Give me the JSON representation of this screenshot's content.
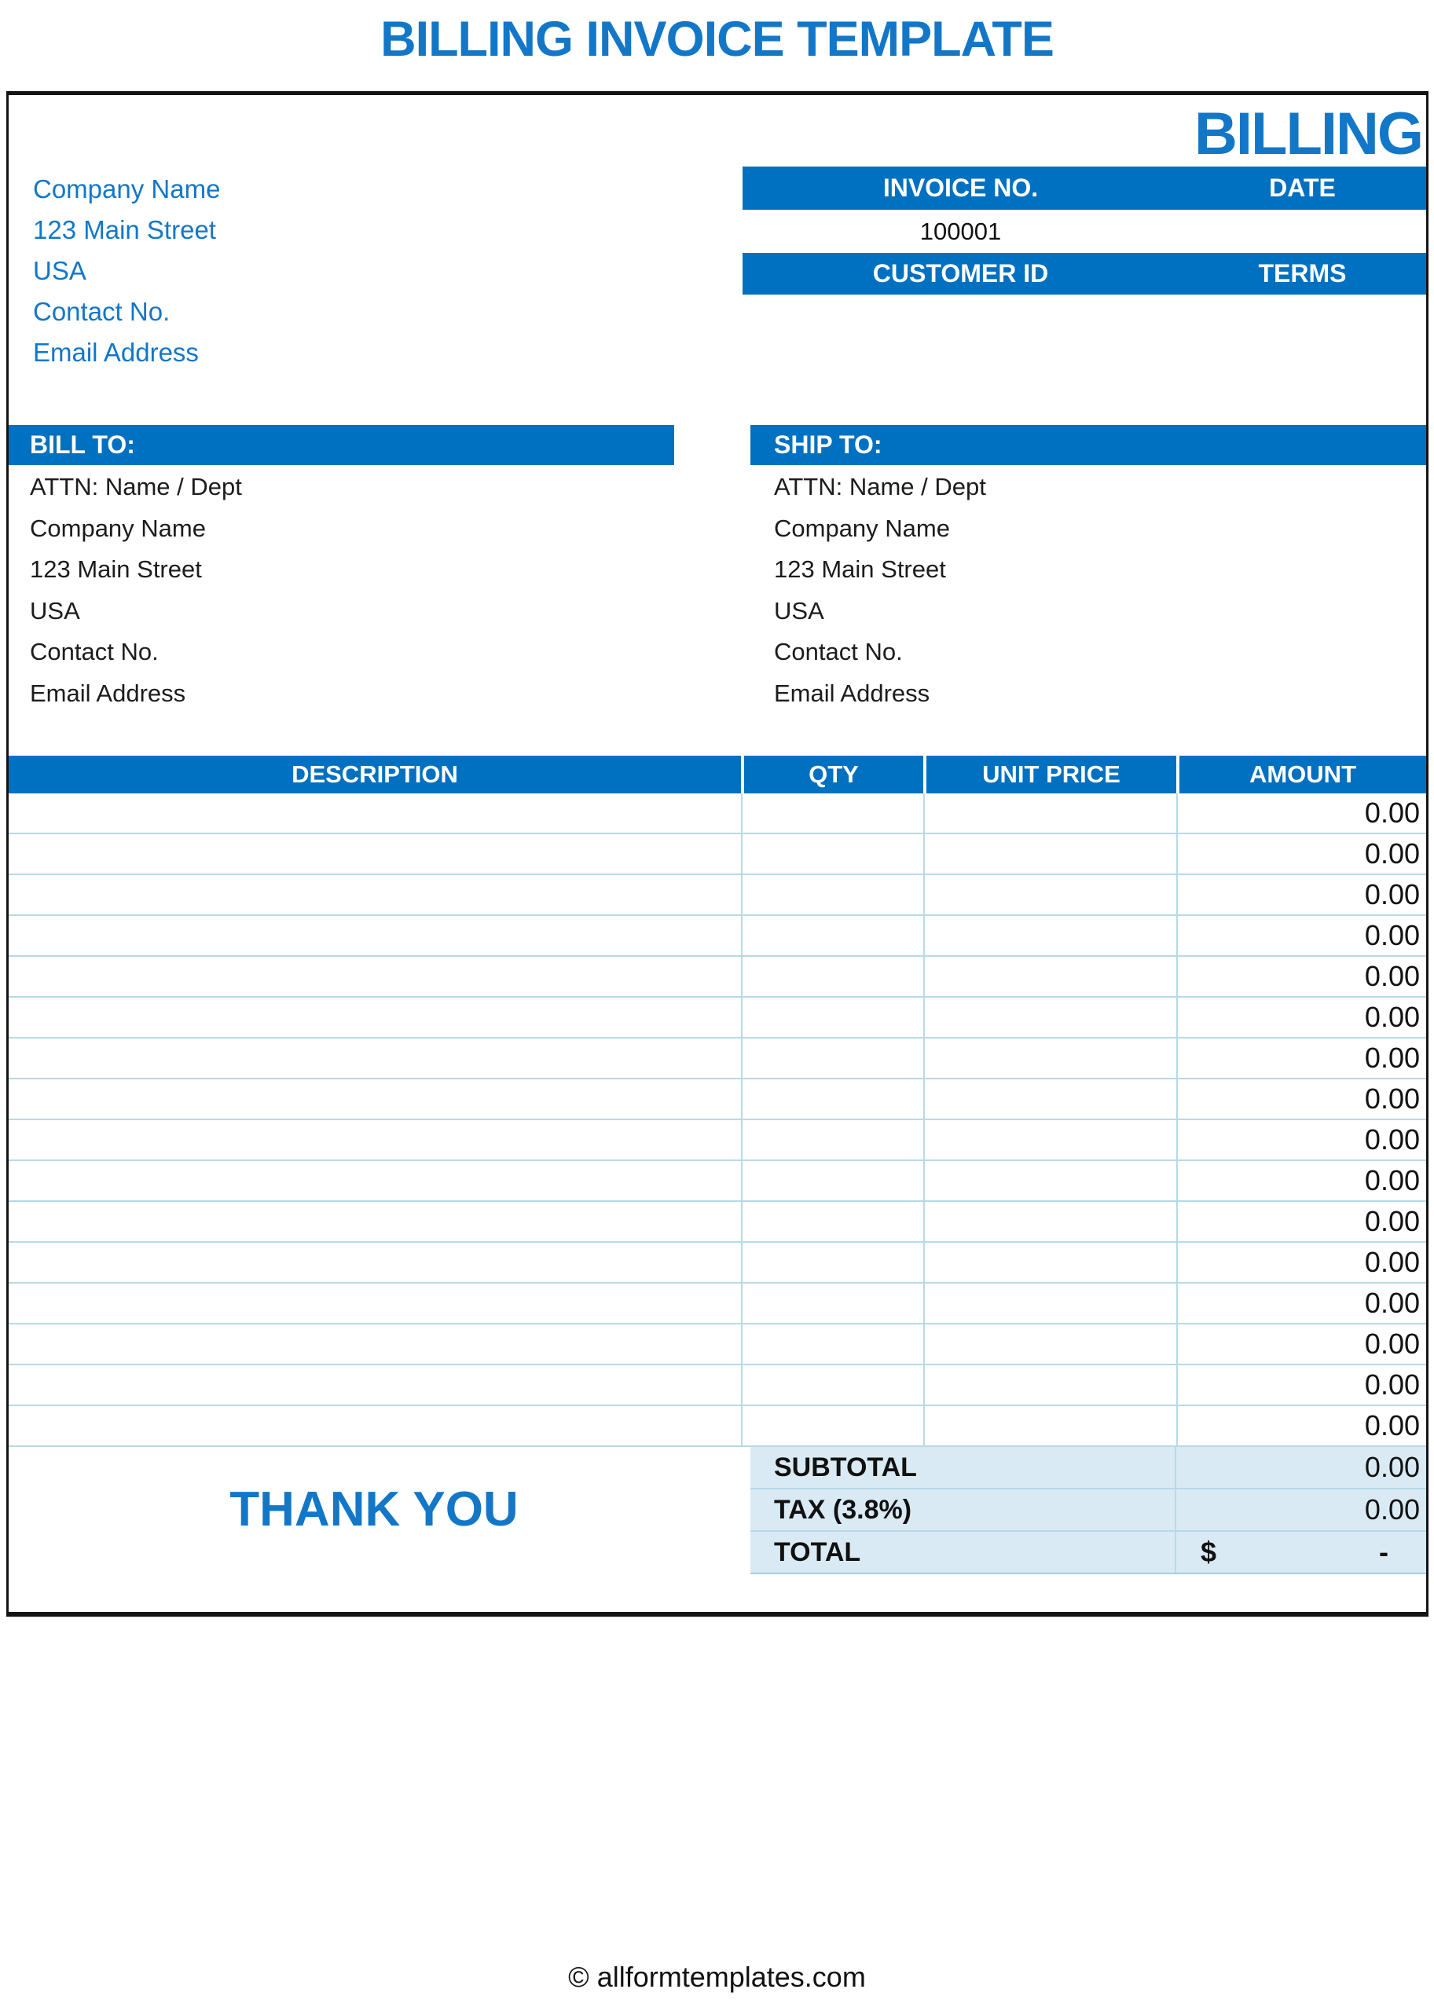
{
  "page": {
    "title": "BILLING INVOICE TEMPLATE",
    "watermark": "BILLING",
    "footer": "© allformtemplates.com",
    "thank_you": "THANK YOU"
  },
  "colors": {
    "bar_blue": "#0070C0",
    "text_blue": "#1377C8",
    "totals_bg": "#D9EAF4",
    "grid_line": "#B7D9E6"
  },
  "company": {
    "lines": [
      "Company Name",
      "123 Main Street",
      "USA",
      "Contact No.",
      "Email Address"
    ]
  },
  "invoice_header": {
    "invoice_no_label": "INVOICE NO.",
    "date_label": "DATE",
    "invoice_no_value": "100001",
    "date_value": "",
    "customer_id_label": "CUSTOMER ID",
    "terms_label": "TERMS",
    "customer_id_value": "",
    "terms_value": ""
  },
  "bill_to": {
    "label": "BILL TO:",
    "lines": [
      "ATTN: Name / Dept",
      "Company Name",
      "123 Main Street",
      "USA",
      "Contact No.",
      "Email Address"
    ]
  },
  "ship_to": {
    "label": "SHIP TO:",
    "lines": [
      "ATTN: Name / Dept",
      "Company Name",
      "123 Main Street",
      "USA",
      "Contact No.",
      "Email Address"
    ]
  },
  "items_table": {
    "headers": [
      "DESCRIPTION",
      "QTY",
      "UNIT PRICE",
      "AMOUNT"
    ],
    "rows": [
      {
        "description": "",
        "qty": "",
        "unit_price": "",
        "amount": "0.00"
      },
      {
        "description": "",
        "qty": "",
        "unit_price": "",
        "amount": "0.00"
      },
      {
        "description": "",
        "qty": "",
        "unit_price": "",
        "amount": "0.00"
      },
      {
        "description": "",
        "qty": "",
        "unit_price": "",
        "amount": "0.00"
      },
      {
        "description": "",
        "qty": "",
        "unit_price": "",
        "amount": "0.00"
      },
      {
        "description": "",
        "qty": "",
        "unit_price": "",
        "amount": "0.00"
      },
      {
        "description": "",
        "qty": "",
        "unit_price": "",
        "amount": "0.00"
      },
      {
        "description": "",
        "qty": "",
        "unit_price": "",
        "amount": "0.00"
      },
      {
        "description": "",
        "qty": "",
        "unit_price": "",
        "amount": "0.00"
      },
      {
        "description": "",
        "qty": "",
        "unit_price": "",
        "amount": "0.00"
      },
      {
        "description": "",
        "qty": "",
        "unit_price": "",
        "amount": "0.00"
      },
      {
        "description": "",
        "qty": "",
        "unit_price": "",
        "amount": "0.00"
      },
      {
        "description": "",
        "qty": "",
        "unit_price": "",
        "amount": "0.00"
      },
      {
        "description": "",
        "qty": "",
        "unit_price": "",
        "amount": "0.00"
      },
      {
        "description": "",
        "qty": "",
        "unit_price": "",
        "amount": "0.00"
      },
      {
        "description": "",
        "qty": "",
        "unit_price": "",
        "amount": "0.00"
      }
    ]
  },
  "totals": {
    "subtotal_label": "SUBTOTAL",
    "subtotal_value": "0.00",
    "tax_label": "TAX (3.8%)",
    "tax_value": "0.00",
    "total_label": "TOTAL",
    "total_currency": "$",
    "total_value": "-"
  }
}
